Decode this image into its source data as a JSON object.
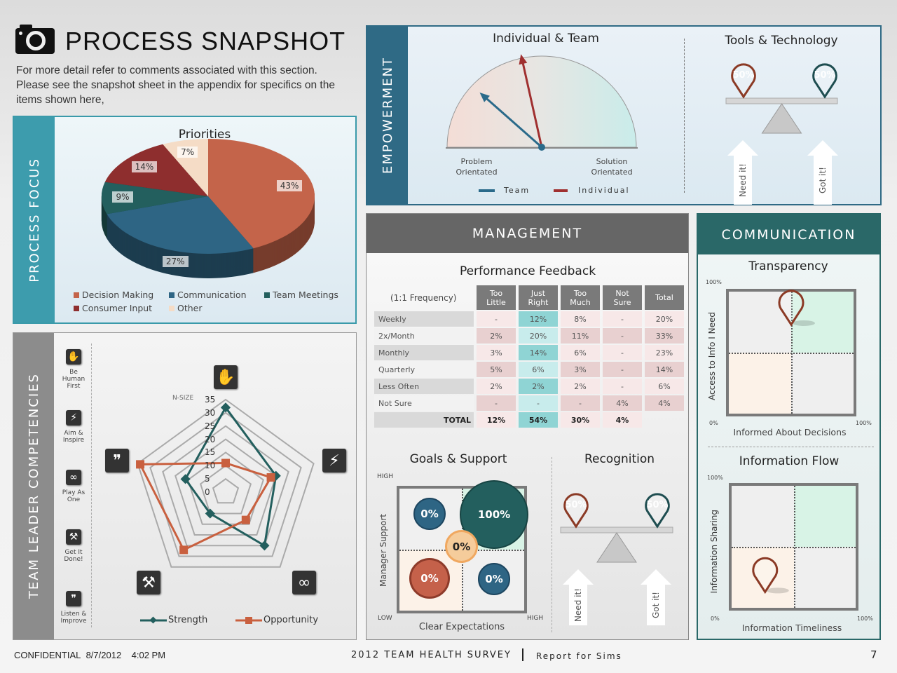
{
  "header": {
    "title": "PROCESS SNAPSHOT",
    "icon": "camera-icon",
    "description": [
      "For more detail refer to comments associated with this section.",
      "Please see the snapshot sheet in the appendix for specifics on the",
      "items shown here,"
    ]
  },
  "process_focus": {
    "side_label": "PROCESS FOCUS"
  },
  "empowerment": {
    "side_label": "EMPOWERMENT",
    "gauge": {
      "title": "Individual & Team",
      "left_label": [
        "Problem",
        "Orientated"
      ],
      "right_label": [
        "Solution",
        "Orientated"
      ],
      "legend": [
        "Team",
        "Individual"
      ],
      "team_value_pct": 23,
      "individual_value_pct": 43,
      "colors": {
        "team": "#2a6a8a",
        "individual": "#a03030"
      }
    },
    "tools": {
      "title": "Tools & Technology",
      "need_pct": "50%",
      "got_pct": "50%",
      "need_label": "Need it!",
      "got_label": "Got it!"
    }
  },
  "management": {
    "title": "MANAGEMENT",
    "performance": {
      "title": "Performance Feedback",
      "freq_label": "(1:1 Frequency)",
      "columns": [
        [
          "Too",
          "Little"
        ],
        [
          "Just",
          "Right"
        ],
        [
          "Too",
          "Much"
        ],
        [
          "Not",
          "Sure"
        ],
        [
          "Total"
        ]
      ],
      "rows": [
        {
          "label": "Weekly",
          "cells": [
            "-",
            "12%",
            "8%",
            "-",
            "20%"
          ]
        },
        {
          "label": "2x/Month",
          "cells": [
            "2%",
            "20%",
            "11%",
            "-",
            "33%"
          ]
        },
        {
          "label": "Monthly",
          "cells": [
            "3%",
            "14%",
            "6%",
            "-",
            "23%"
          ]
        },
        {
          "label": "Quarterly",
          "cells": [
            "5%",
            "6%",
            "3%",
            "-",
            "14%"
          ]
        },
        {
          "label": "Less Often",
          "cells": [
            "2%",
            "2%",
            "2%",
            "-",
            "6%"
          ]
        },
        {
          "label": "Not Sure",
          "cells": [
            "-",
            "-",
            "-",
            "4%",
            "4%"
          ]
        }
      ],
      "total": {
        "label": "TOTAL",
        "cells": [
          "12%",
          "54%",
          "30%",
          "4%"
        ]
      }
    },
    "goals": {
      "title": "Goals & Support",
      "y_label": "Manager Support",
      "x_label": "Clear Expectations",
      "high_y": "HIGH",
      "low": "LOW",
      "high_x": "HIGH",
      "bubbles": {
        "top_left": "0%",
        "top_right": "100%",
        "center": "0%",
        "bottom_left": "0%",
        "bottom_right": "0%"
      }
    },
    "recognition": {
      "title": "Recognition",
      "need_pct": "50%",
      "got_pct": "50%",
      "need_label": "Need it!",
      "got_label": "Got it!"
    }
  },
  "communication": {
    "title": "COMMUNICATION",
    "transparency": {
      "title": "Transparency",
      "y_label": "Access to Info I Need",
      "x_label": "Informed About Decisions",
      "max": "100%",
      "min": "0%",
      "xmax": "100%",
      "pin_x_pct": 50,
      "pin_y_pct": 73
    },
    "flow": {
      "title": "Information Flow",
      "y_label": "Information Sharing",
      "x_label": "Information Timeliness",
      "max": "100%",
      "min": "0%",
      "xmax": "100%",
      "pin_x_pct": 27,
      "pin_y_pct": 13
    }
  },
  "team_leader": {
    "side_label": "TEAM LEADER COMPETENCIES",
    "items": [
      {
        "label": [
          "Be",
          "Human",
          "First"
        ],
        "icon": "hand-icon",
        "glyph": "✋"
      },
      {
        "label": [
          "Aim &",
          "Inspire"
        ],
        "icon": "lightning-icon",
        "glyph": "⚡"
      },
      {
        "label": [
          "Play As",
          "One"
        ],
        "icon": "chain-link-icon",
        "glyph": "∞"
      },
      {
        "label": [
          "Get It",
          "Done!"
        ],
        "icon": "shovels-icon",
        "glyph": "⚒"
      },
      {
        "label": [
          "Listen &",
          "Improve"
        ],
        "icon": "chat-bubbles-icon",
        "glyph": "❞"
      }
    ]
  },
  "chart_data": [
    {
      "type": "pie",
      "title": "Priorities",
      "categories": [
        "Decision Making",
        "Communication",
        "Team Meetings",
        "Consumer Input",
        "Other"
      ],
      "values": [
        43,
        27,
        9,
        14,
        7
      ],
      "labels": [
        "43%",
        "27%",
        "9%",
        "14%",
        "7%"
      ],
      "colors": [
        "#c4644a",
        "#2e6584",
        "#235f5e",
        "#8e2e2e",
        "#f5dcc6"
      ],
      "legend_position": "bottom"
    },
    {
      "type": "radar",
      "axes": [
        "Be Human First",
        "Aim & Inspire",
        "Play As One",
        "Get It Done!",
        "Listen & Improve"
      ],
      "axis_title": "N-SIZE",
      "ticks": [
        "0",
        "5",
        "10",
        "15",
        "20",
        "25",
        "30",
        "35"
      ],
      "range": [
        0,
        35
      ],
      "series": [
        {
          "name": "Strength",
          "values": [
            32,
            20,
            25,
            10,
            16
          ],
          "color": "#235f5e"
        },
        {
          "name": "Opportunity",
          "values": [
            11,
            18,
            13,
            27,
            34
          ],
          "color": "#c9603f"
        }
      ],
      "legend_position": "bottom"
    }
  ],
  "footer": {
    "confidential": "CONFIDENTIAL",
    "date": "8/7/2012",
    "time": "4:02 PM",
    "survey": "2012 TEAM HEALTH SURVEY",
    "report": "Report for Sims",
    "page": "7"
  }
}
